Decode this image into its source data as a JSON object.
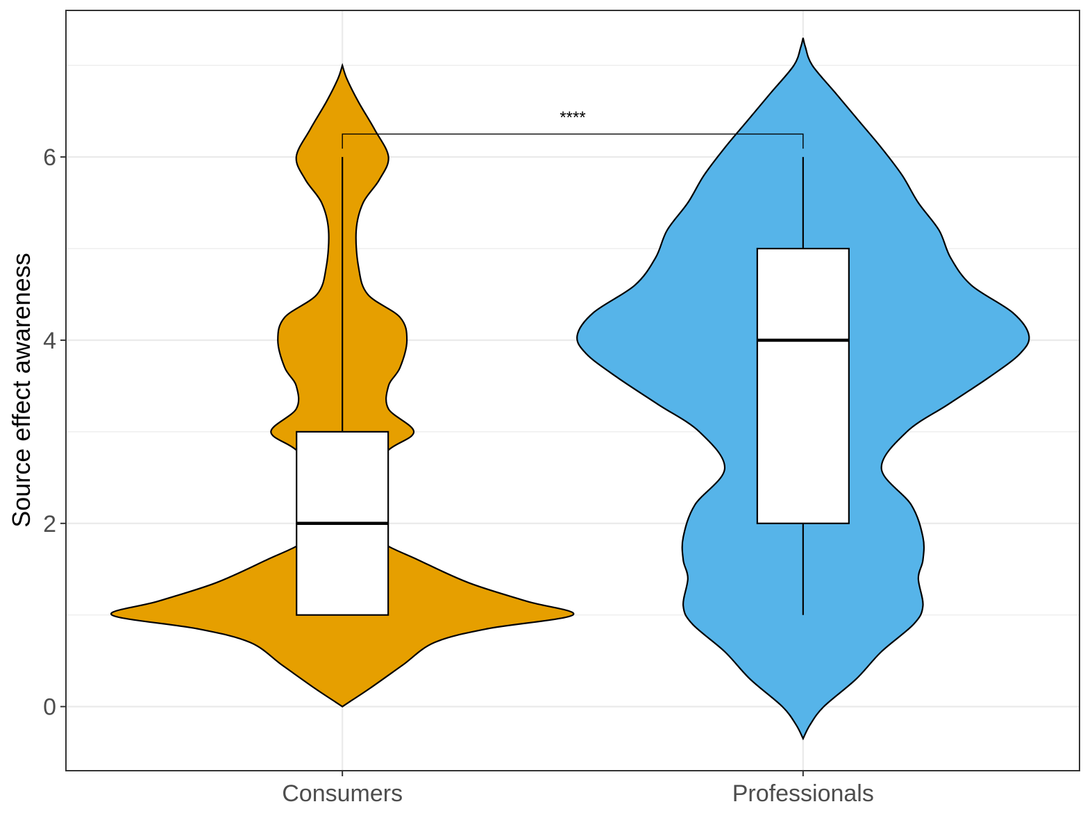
{
  "chart_data": {
    "type": "violin",
    "title": "",
    "xlabel": "",
    "ylabel": "Source effect awareness",
    "ylim": [
      -0.7,
      7.6
    ],
    "yticks": [
      0,
      2,
      4,
      6
    ],
    "categories": [
      "Consumers",
      "Professionals"
    ],
    "grid": true,
    "legend": "none",
    "series": [
      {
        "name": "Consumers",
        "color": "#E69F00",
        "density_profile": [
          [
            0.0,
            0.0
          ],
          [
            0.05,
            0.03
          ],
          [
            0.2,
            0.12
          ],
          [
            0.45,
            0.26
          ],
          [
            0.7,
            0.4
          ],
          [
            0.85,
            0.63
          ],
          [
            1.0,
            1.0
          ],
          [
            1.15,
            0.8
          ],
          [
            1.35,
            0.55
          ],
          [
            1.6,
            0.33
          ],
          [
            1.8,
            0.17
          ],
          [
            2.0,
            0.15
          ],
          [
            2.2,
            0.12
          ],
          [
            2.5,
            0.1
          ],
          [
            2.8,
            0.2
          ],
          [
            3.0,
            0.31
          ],
          [
            3.25,
            0.2
          ],
          [
            3.5,
            0.2
          ],
          [
            3.7,
            0.25
          ],
          [
            4.0,
            0.28
          ],
          [
            4.25,
            0.25
          ],
          [
            4.5,
            0.11
          ],
          [
            4.8,
            0.07
          ],
          [
            5.2,
            0.06
          ],
          [
            5.5,
            0.09
          ],
          [
            5.75,
            0.16
          ],
          [
            6.0,
            0.2
          ],
          [
            6.3,
            0.14
          ],
          [
            6.6,
            0.07
          ],
          [
            6.85,
            0.02
          ],
          [
            7.0,
            0.0
          ]
        ],
        "box": {
          "min": 1,
          "q1": 1,
          "median": 2,
          "q3": 3,
          "max": 6
        }
      },
      {
        "name": "Professionals",
        "color": "#56B4E9",
        "density_profile": [
          [
            -0.35,
            0.0
          ],
          [
            -0.2,
            0.03
          ],
          [
            0.0,
            0.09
          ],
          [
            0.3,
            0.23
          ],
          [
            0.6,
            0.34
          ],
          [
            0.9,
            0.48
          ],
          [
            1.1,
            0.52
          ],
          [
            1.4,
            0.5
          ],
          [
            1.6,
            0.52
          ],
          [
            1.85,
            0.52
          ],
          [
            2.2,
            0.47
          ],
          [
            2.6,
            0.34
          ],
          [
            3.0,
            0.45
          ],
          [
            3.3,
            0.63
          ],
          [
            3.6,
            0.81
          ],
          [
            3.85,
            0.94
          ],
          [
            4.05,
            0.98
          ],
          [
            4.3,
            0.91
          ],
          [
            4.6,
            0.73
          ],
          [
            4.9,
            0.64
          ],
          [
            5.2,
            0.59
          ],
          [
            5.5,
            0.5
          ],
          [
            5.8,
            0.43
          ],
          [
            6.1,
            0.34
          ],
          [
            6.4,
            0.24
          ],
          [
            6.7,
            0.14
          ],
          [
            7.0,
            0.04
          ],
          [
            7.2,
            0.01
          ],
          [
            7.3,
            0.0
          ]
        ],
        "box": {
          "min": 1,
          "q1": 2,
          "median": 4,
          "q3": 5,
          "max": 6
        }
      }
    ],
    "annotations": [
      {
        "type": "significance-bracket",
        "from": "Consumers",
        "to": "Professionals",
        "y": 6.25,
        "label": "****"
      }
    ]
  }
}
